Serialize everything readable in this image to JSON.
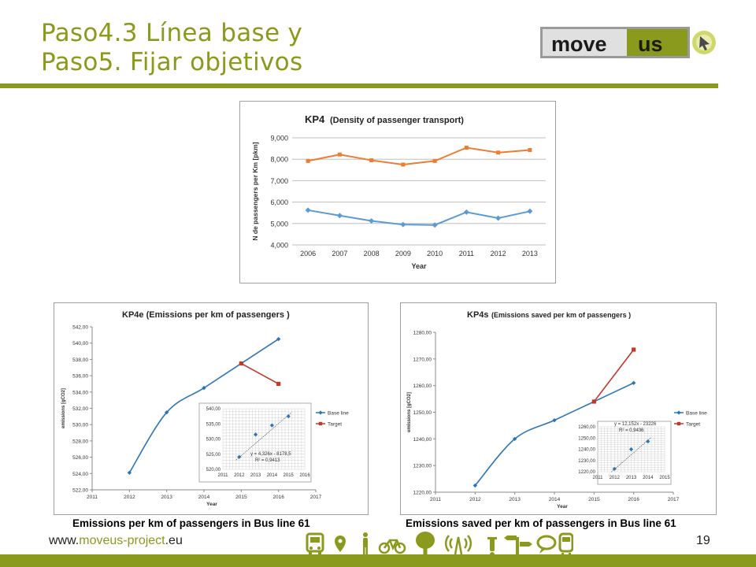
{
  "slide": {
    "title_line1": "Paso4.3 Línea base y",
    "title_line2": "Paso5. Fijar objetivos",
    "logo_text_a": "move",
    "logo_text_b": "us",
    "footer_url_a": "www.",
    "footer_url_b": "moveus-project",
    "footer_url_c": ".eu",
    "page_number": "19",
    "caption_left": "Emissions per km of passengers in Bus line 61",
    "caption_right": "Emissions saved per km of passengers in Bus line 61",
    "accent_color": "#8a9a1c",
    "footer_icons": [
      "bus-icon",
      "location-pin-icon",
      "pedestrian-icon",
      "bicycle-icon",
      "tree-icon",
      "antenna-icon",
      "scooter-icon",
      "signpost-icon",
      "speech-bubble-icon",
      "train-icon"
    ]
  },
  "chart_data": [
    {
      "type": "line",
      "title": "KP4",
      "subtitle": "(Density of passenger transport)",
      "xlabel": "Year",
      "ylabel": "N de passengers per Km [pkm]",
      "categories": [
        "2006",
        "2007",
        "2008",
        "2009",
        "2010",
        "2011",
        "2012",
        "2013"
      ],
      "yticks": [
        "4,000",
        "5,000",
        "6,000",
        "7,000",
        "8,000",
        "9,000"
      ],
      "ylim": [
        4000,
        9000
      ],
      "grid": true,
      "series": [
        {
          "color": "#ed7d31",
          "marker": "square",
          "values": [
            7920,
            8220,
            7950,
            7750,
            7920,
            8540,
            8310,
            8430
          ]
        },
        {
          "color": "#5b9bd5",
          "marker": "diamond",
          "values": [
            5620,
            5370,
            5120,
            4950,
            4930,
            5530,
            5250,
            5570
          ]
        }
      ]
    },
    {
      "type": "line",
      "title": "KP4e (Emissions per km of passengers )",
      "xlabel": "Year",
      "ylabel": "emissions [gCO2]",
      "xticks": [
        "2011",
        "2012",
        "2013",
        "2014",
        "2015",
        "2016",
        "2017"
      ],
      "yticks": [
        "522,00",
        "524,00",
        "526,00",
        "528,00",
        "530,00",
        "532,00",
        "534,00",
        "536,00",
        "538,00",
        "540,00",
        "542,00"
      ],
      "ylim": [
        522,
        542
      ],
      "xlim": [
        2011,
        2017
      ],
      "legend_position": "right",
      "series": [
        {
          "name": "Base line",
          "color": "#2e75b6",
          "x": [
            2012,
            2013,
            2014,
            2015,
            2016
          ],
          "values": [
            524.1,
            531.5,
            534.5,
            537.5,
            540.5
          ]
        },
        {
          "name": "Target",
          "color": "#c0392b",
          "x": [
            2015,
            2016
          ],
          "values": [
            537.5,
            535.0
          ]
        }
      ],
      "inset": {
        "xticks": [
          "2011",
          "2012",
          "2013",
          "2014",
          "2015",
          "2016"
        ],
        "yticks": [
          "520,00",
          "525,00",
          "530,00",
          "535,00",
          "540,00"
        ],
        "ylim": [
          520,
          540
        ],
        "xlim": [
          2011,
          2016
        ],
        "x": [
          2012,
          2013,
          2014,
          2015
        ],
        "values": [
          524.1,
          531.5,
          534.5,
          537.5
        ],
        "equation": "y = 4,326x - 8178,5",
        "r2": "R² = 0,9413"
      }
    },
    {
      "type": "line",
      "title": "KP4s",
      "subtitle": "(Emissions saved per km of passengers )",
      "xlabel": "Year",
      "ylabel": "emissions [gCO2]",
      "xticks": [
        "2011",
        "2012",
        "2013",
        "2014",
        "2015",
        "2016",
        "2017"
      ],
      "yticks": [
        "1220,00",
        "1230,00",
        "1240,00",
        "1250,00",
        "1260,00",
        "1270,00",
        "1280,00"
      ],
      "ylim": [
        1220,
        1280
      ],
      "xlim": [
        2011,
        2017
      ],
      "legend_position": "right",
      "series": [
        {
          "name": "Base line",
          "color": "#2e75b6",
          "x": [
            2012,
            2013,
            2014,
            2015,
            2016
          ],
          "values": [
            1222.5,
            1240.0,
            1247.0,
            1254.0,
            1261.0
          ]
        },
        {
          "name": "Target",
          "color": "#c0392b",
          "x": [
            2015,
            2016
          ],
          "values": [
            1254.0,
            1273.5
          ]
        }
      ],
      "inset": {
        "xticks": [
          "2011",
          "2012",
          "2013",
          "2014",
          "2015"
        ],
        "yticks": [
          "1220,00",
          "1230,00",
          "1240,00",
          "1250,00",
          "1260,00"
        ],
        "ylim": [
          1220,
          1260
        ],
        "xlim": [
          2011,
          2015
        ],
        "x": [
          2012,
          2013,
          2014
        ],
        "values": [
          1222.5,
          1240.0,
          1247.0
        ],
        "equation": "y = 12,152x - 23226",
        "r2": "R² = 0,9436"
      }
    }
  ]
}
